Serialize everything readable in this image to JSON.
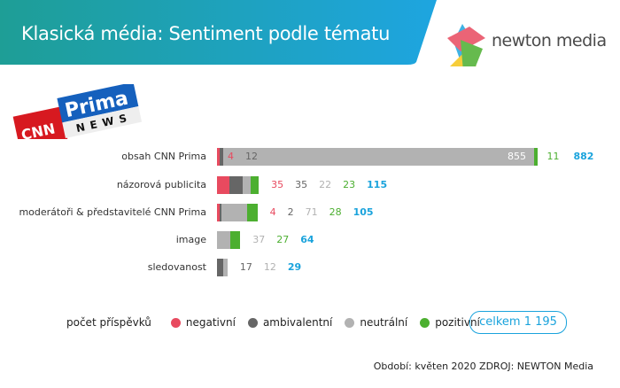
{
  "header": {
    "title": "Klasická média: Sentiment podle tématu",
    "brand": "newton media"
  },
  "logo": {
    "text": "CNN Prima NEWS"
  },
  "colors": {
    "negative": "#e84a5f",
    "ambivalent": "#666666",
    "neutral": "#b2b2b2",
    "positive": "#4caf30",
    "total": "#1aa3dc"
  },
  "chart_data": {
    "type": "bar",
    "orientation": "horizontal",
    "stacked": true,
    "categories": [
      "obsah CNN Prima",
      "názorová publicita",
      "moderátoři & představitelé CNN Prima",
      "image",
      "sledovanost"
    ],
    "series": [
      {
        "name": "negativní",
        "values": [
          4,
          35,
          4,
          0,
          0
        ]
      },
      {
        "name": "ambivalentní",
        "values": [
          12,
          35,
          2,
          0,
          17
        ]
      },
      {
        "name": "neutrální",
        "values": [
          855,
          22,
          71,
          37,
          12
        ]
      },
      {
        "name": "pozitivní",
        "values": [
          11,
          23,
          28,
          27,
          0
        ]
      }
    ],
    "totals": [
      882,
      115,
      105,
      64,
      29
    ]
  },
  "legend": {
    "title": "počet příspěvků",
    "items": [
      "negativní",
      "ambivalentní",
      "neutrální",
      "pozitivní"
    ],
    "total_label": "celkem  1 195"
  },
  "footer": {
    "source": "Období: květen 2020 ZDROJ: NEWTON Media"
  }
}
